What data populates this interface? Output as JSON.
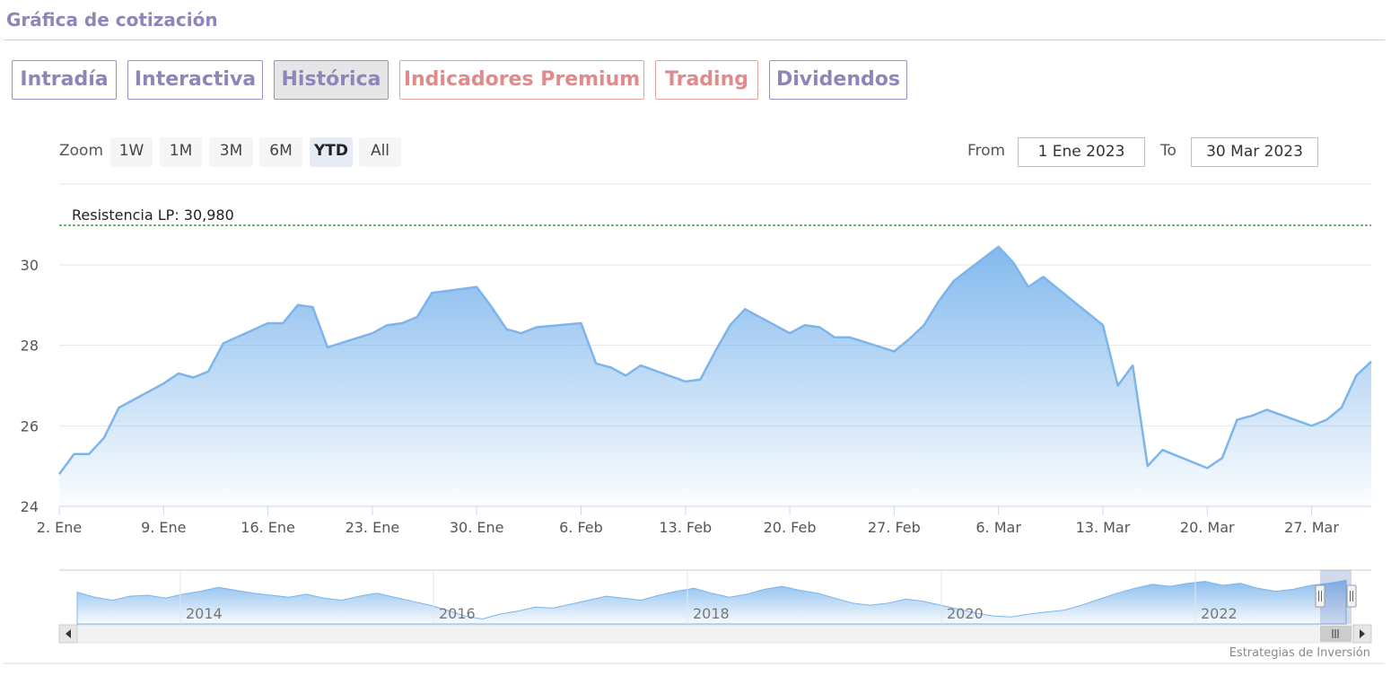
{
  "header": {
    "title": "Gráfica de cotización"
  },
  "tabs": [
    {
      "label": "Intradía",
      "active": false,
      "premium": false
    },
    {
      "label": "Interactiva",
      "active": false,
      "premium": false
    },
    {
      "label": "Histórica",
      "active": true,
      "premium": false
    },
    {
      "label": "Indicadores Premium",
      "active": false,
      "premium": true
    },
    {
      "label": "Trading",
      "active": false,
      "premium": true
    },
    {
      "label": "Dividendos",
      "active": false,
      "premium": false
    }
  ],
  "zoom": {
    "label": "Zoom",
    "buttons": [
      {
        "label": "1W",
        "active": false
      },
      {
        "label": "1M",
        "active": false
      },
      {
        "label": "3M",
        "active": false
      },
      {
        "label": "6M",
        "active": false
      },
      {
        "label": "YTD",
        "active": true
      },
      {
        "label": "All",
        "active": false
      }
    ]
  },
  "range": {
    "from_label": "From",
    "from_value": "1 Ene 2023",
    "to_label": "To",
    "to_value": "30 Mar 2023"
  },
  "credit": "Estrategias de Inversión",
  "colors": {
    "accent": "#8e85b8",
    "premium": "#e08b8b",
    "series": "#7cb5ec",
    "resistance": "#1a8a1a"
  },
  "chart_data": {
    "type": "area",
    "title": "",
    "ylim": [
      24,
      31.5
    ],
    "yticks": [
      24,
      26,
      28,
      30
    ],
    "ytick_labels": [
      "24",
      "26",
      "28",
      "30"
    ],
    "xlim": [
      "2023-01-02",
      "2023-03-31"
    ],
    "xticks": [
      {
        "date": "2023-01-02",
        "label": "2. Ene"
      },
      {
        "date": "2023-01-09",
        "label": "9. Ene"
      },
      {
        "date": "2023-01-16",
        "label": "16. Ene"
      },
      {
        "date": "2023-01-23",
        "label": "23. Ene"
      },
      {
        "date": "2023-01-30",
        "label": "30. Ene"
      },
      {
        "date": "2023-02-06",
        "label": "6. Feb"
      },
      {
        "date": "2023-02-13",
        "label": "13. Feb"
      },
      {
        "date": "2023-02-20",
        "label": "20. Feb"
      },
      {
        "date": "2023-02-27",
        "label": "27. Feb"
      },
      {
        "date": "2023-03-06",
        "label": "6. Mar"
      },
      {
        "date": "2023-03-13",
        "label": "13. Mar"
      },
      {
        "date": "2023-03-20",
        "label": "20. Mar"
      },
      {
        "date": "2023-03-27",
        "label": "27. Mar"
      }
    ],
    "series": [
      {
        "x": [
          "2023-01-02",
          "2023-01-03",
          "2023-01-04",
          "2023-01-05",
          "2023-01-06",
          "2023-01-09",
          "2023-01-10",
          "2023-01-11",
          "2023-01-12",
          "2023-01-13",
          "2023-01-16",
          "2023-01-17",
          "2023-01-18",
          "2023-01-19",
          "2023-01-20",
          "2023-01-23",
          "2023-01-24",
          "2023-01-25",
          "2023-01-26",
          "2023-01-27",
          "2023-01-30",
          "2023-01-31",
          "2023-02-01",
          "2023-02-02",
          "2023-02-03",
          "2023-02-06",
          "2023-02-07",
          "2023-02-08",
          "2023-02-09",
          "2023-02-10",
          "2023-02-13",
          "2023-02-14",
          "2023-02-15",
          "2023-02-16",
          "2023-02-17",
          "2023-02-20",
          "2023-02-21",
          "2023-02-22",
          "2023-02-23",
          "2023-02-24",
          "2023-02-27",
          "2023-02-28",
          "2023-03-01",
          "2023-03-02",
          "2023-03-03",
          "2023-03-06",
          "2023-03-07",
          "2023-03-08",
          "2023-03-09",
          "2023-03-10",
          "2023-03-13",
          "2023-03-14",
          "2023-03-15",
          "2023-03-16",
          "2023-03-17",
          "2023-03-20",
          "2023-03-21",
          "2023-03-22",
          "2023-03-23",
          "2023-03-24",
          "2023-03-27",
          "2023-03-28",
          "2023-03-29",
          "2023-03-30",
          "2023-03-31"
        ],
        "values": [
          24.8,
          25.3,
          25.3,
          25.7,
          26.45,
          27.05,
          27.3,
          27.2,
          27.35,
          28.05,
          28.55,
          28.55,
          29.0,
          28.95,
          27.95,
          28.3,
          28.5,
          28.55,
          28.7,
          29.3,
          29.45,
          28.95,
          28.4,
          28.3,
          28.45,
          28.55,
          27.55,
          27.45,
          27.25,
          27.5,
          27.1,
          27.15,
          27.85,
          28.5,
          28.9,
          28.3,
          28.5,
          28.45,
          28.2,
          28.2,
          27.85,
          28.15,
          28.5,
          29.1,
          29.6,
          30.45,
          30.05,
          29.45,
          29.7,
          29.4,
          28.5,
          27.0,
          27.5,
          25.0,
          25.4,
          24.95,
          25.2,
          26.15,
          26.25,
          26.4,
          26.0,
          26.15,
          26.45,
          27.25,
          27.6
        ]
      }
    ],
    "annotations": [
      {
        "type": "horizontal-line",
        "value": 30.98,
        "label": "Resistencia LP: 30,980"
      }
    ],
    "navigator": {
      "labels": [
        "2014",
        "2016",
        "2018",
        "2020",
        "2022"
      ],
      "values": [
        26,
        25.5,
        25.2,
        25.6,
        25.7,
        25.4,
        25.8,
        26.1,
        26.5,
        26.2,
        25.9,
        25.7,
        25.5,
        25.8,
        25.4,
        25.2,
        25.6,
        25.9,
        25.5,
        25.1,
        24.7,
        24.2,
        23.6,
        23.3,
        23.8,
        24.1,
        24.5,
        24.4,
        24.8,
        25.2,
        25.6,
        25.4,
        25.2,
        25.7,
        26.1,
        26.4,
        25.9,
        25.5,
        25.8,
        26.3,
        26.6,
        26.2,
        25.9,
        25.4,
        24.9,
        24.7,
        24.9,
        25.3,
        25.1,
        24.7,
        24.3,
        23.9,
        23.6,
        23.5,
        23.8,
        24.0,
        24.2,
        24.7,
        25.3,
        25.9,
        26.4,
        26.8,
        26.6,
        26.9,
        27.1,
        26.7,
        26.9,
        26.4,
        26.1,
        26.3,
        26.7,
        26.9,
        27.2
      ]
    },
    "grid": true
  }
}
